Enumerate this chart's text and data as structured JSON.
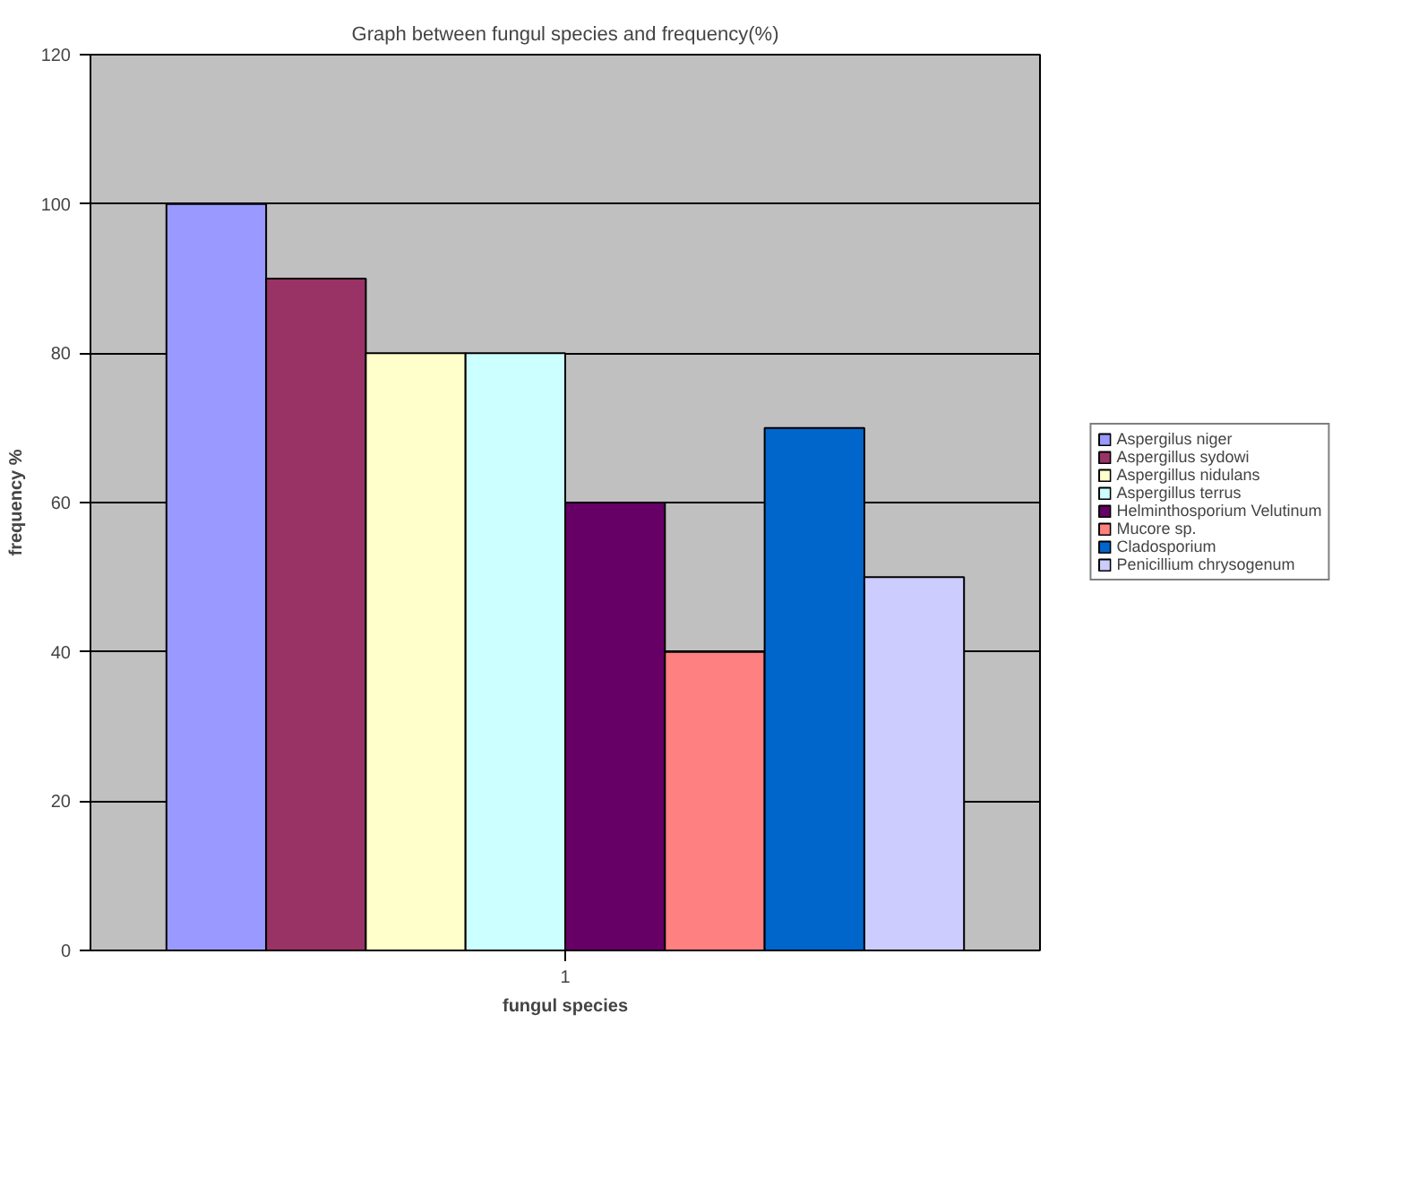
{
  "chart_data": {
    "type": "bar",
    "title": "Graph between fungul species and frequency(%)",
    "xlabel": "fungul species",
    "ylabel": "frequency %",
    "categories": [
      "1"
    ],
    "series": [
      {
        "name": "Aspergilus niger",
        "color": "#9999ff",
        "values": [
          100
        ]
      },
      {
        "name": "Aspergillus sydowi",
        "color": "#993366",
        "values": [
          90
        ]
      },
      {
        "name": "Aspergillus nidulans",
        "color": "#ffffcc",
        "values": [
          80
        ]
      },
      {
        "name": "Aspergillus terrus",
        "color": "#ccffff",
        "values": [
          80
        ]
      },
      {
        "name": "Helminthosporium Velutinum",
        "color": "#660066",
        "values": [
          60
        ]
      },
      {
        "name": "Mucore sp.",
        "color": "#ff8080",
        "values": [
          40
        ]
      },
      {
        "name": "Cladosporium",
        "color": "#0066cc",
        "values": [
          70
        ]
      },
      {
        "name": "Penicillium chrysogenum",
        "color": "#ccccff",
        "values": [
          50
        ]
      }
    ],
    "ylim": [
      0,
      120
    ],
    "yticks": [
      0,
      20,
      40,
      60,
      80,
      100,
      120
    ],
    "grid": "y",
    "legend": "right"
  }
}
